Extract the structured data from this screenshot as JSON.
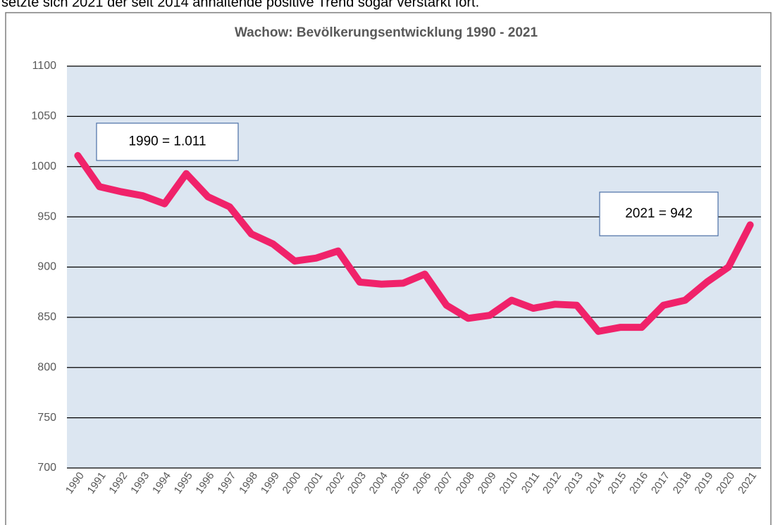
{
  "intro_text": "setzte sich 2021 der seit 2014 anhaltende positive Trend sogar verstärkt fort.",
  "chart_data": {
    "type": "line",
    "title": "Wachow: Bevölkerungsentwicklung 1990 - 2021",
    "categories": [
      "1990",
      "1991",
      "1992",
      "1993",
      "1994",
      "1995",
      "1996",
      "1997",
      "1998",
      "1999",
      "2000",
      "2001",
      "2002",
      "2003",
      "2004",
      "2005",
      "2006",
      "2007",
      "2008",
      "2009",
      "2010",
      "2011",
      "2012",
      "2013",
      "2014",
      "2015",
      "2016",
      "2017",
      "2018",
      "2019",
      "2020",
      "2021"
    ],
    "series": [
      {
        "color": "#f0226a",
        "values": [
          1011,
          980,
          975,
          971,
          963,
          993,
          970,
          960,
          933,
          923,
          906,
          909,
          916,
          885,
          883,
          884,
          893,
          862,
          849,
          852,
          867,
          859,
          863,
          862,
          836,
          840,
          840,
          862,
          867,
          885,
          900,
          942
        ]
      }
    ],
    "ylim": [
      700,
      1100
    ],
    "yticks": [
      700,
      750,
      800,
      850,
      900,
      950,
      1000,
      1050,
      1100
    ],
    "grid": true,
    "annotations": [
      {
        "text": "1990 = 1.011"
      },
      {
        "text": "2021 = 942"
      }
    ]
  }
}
